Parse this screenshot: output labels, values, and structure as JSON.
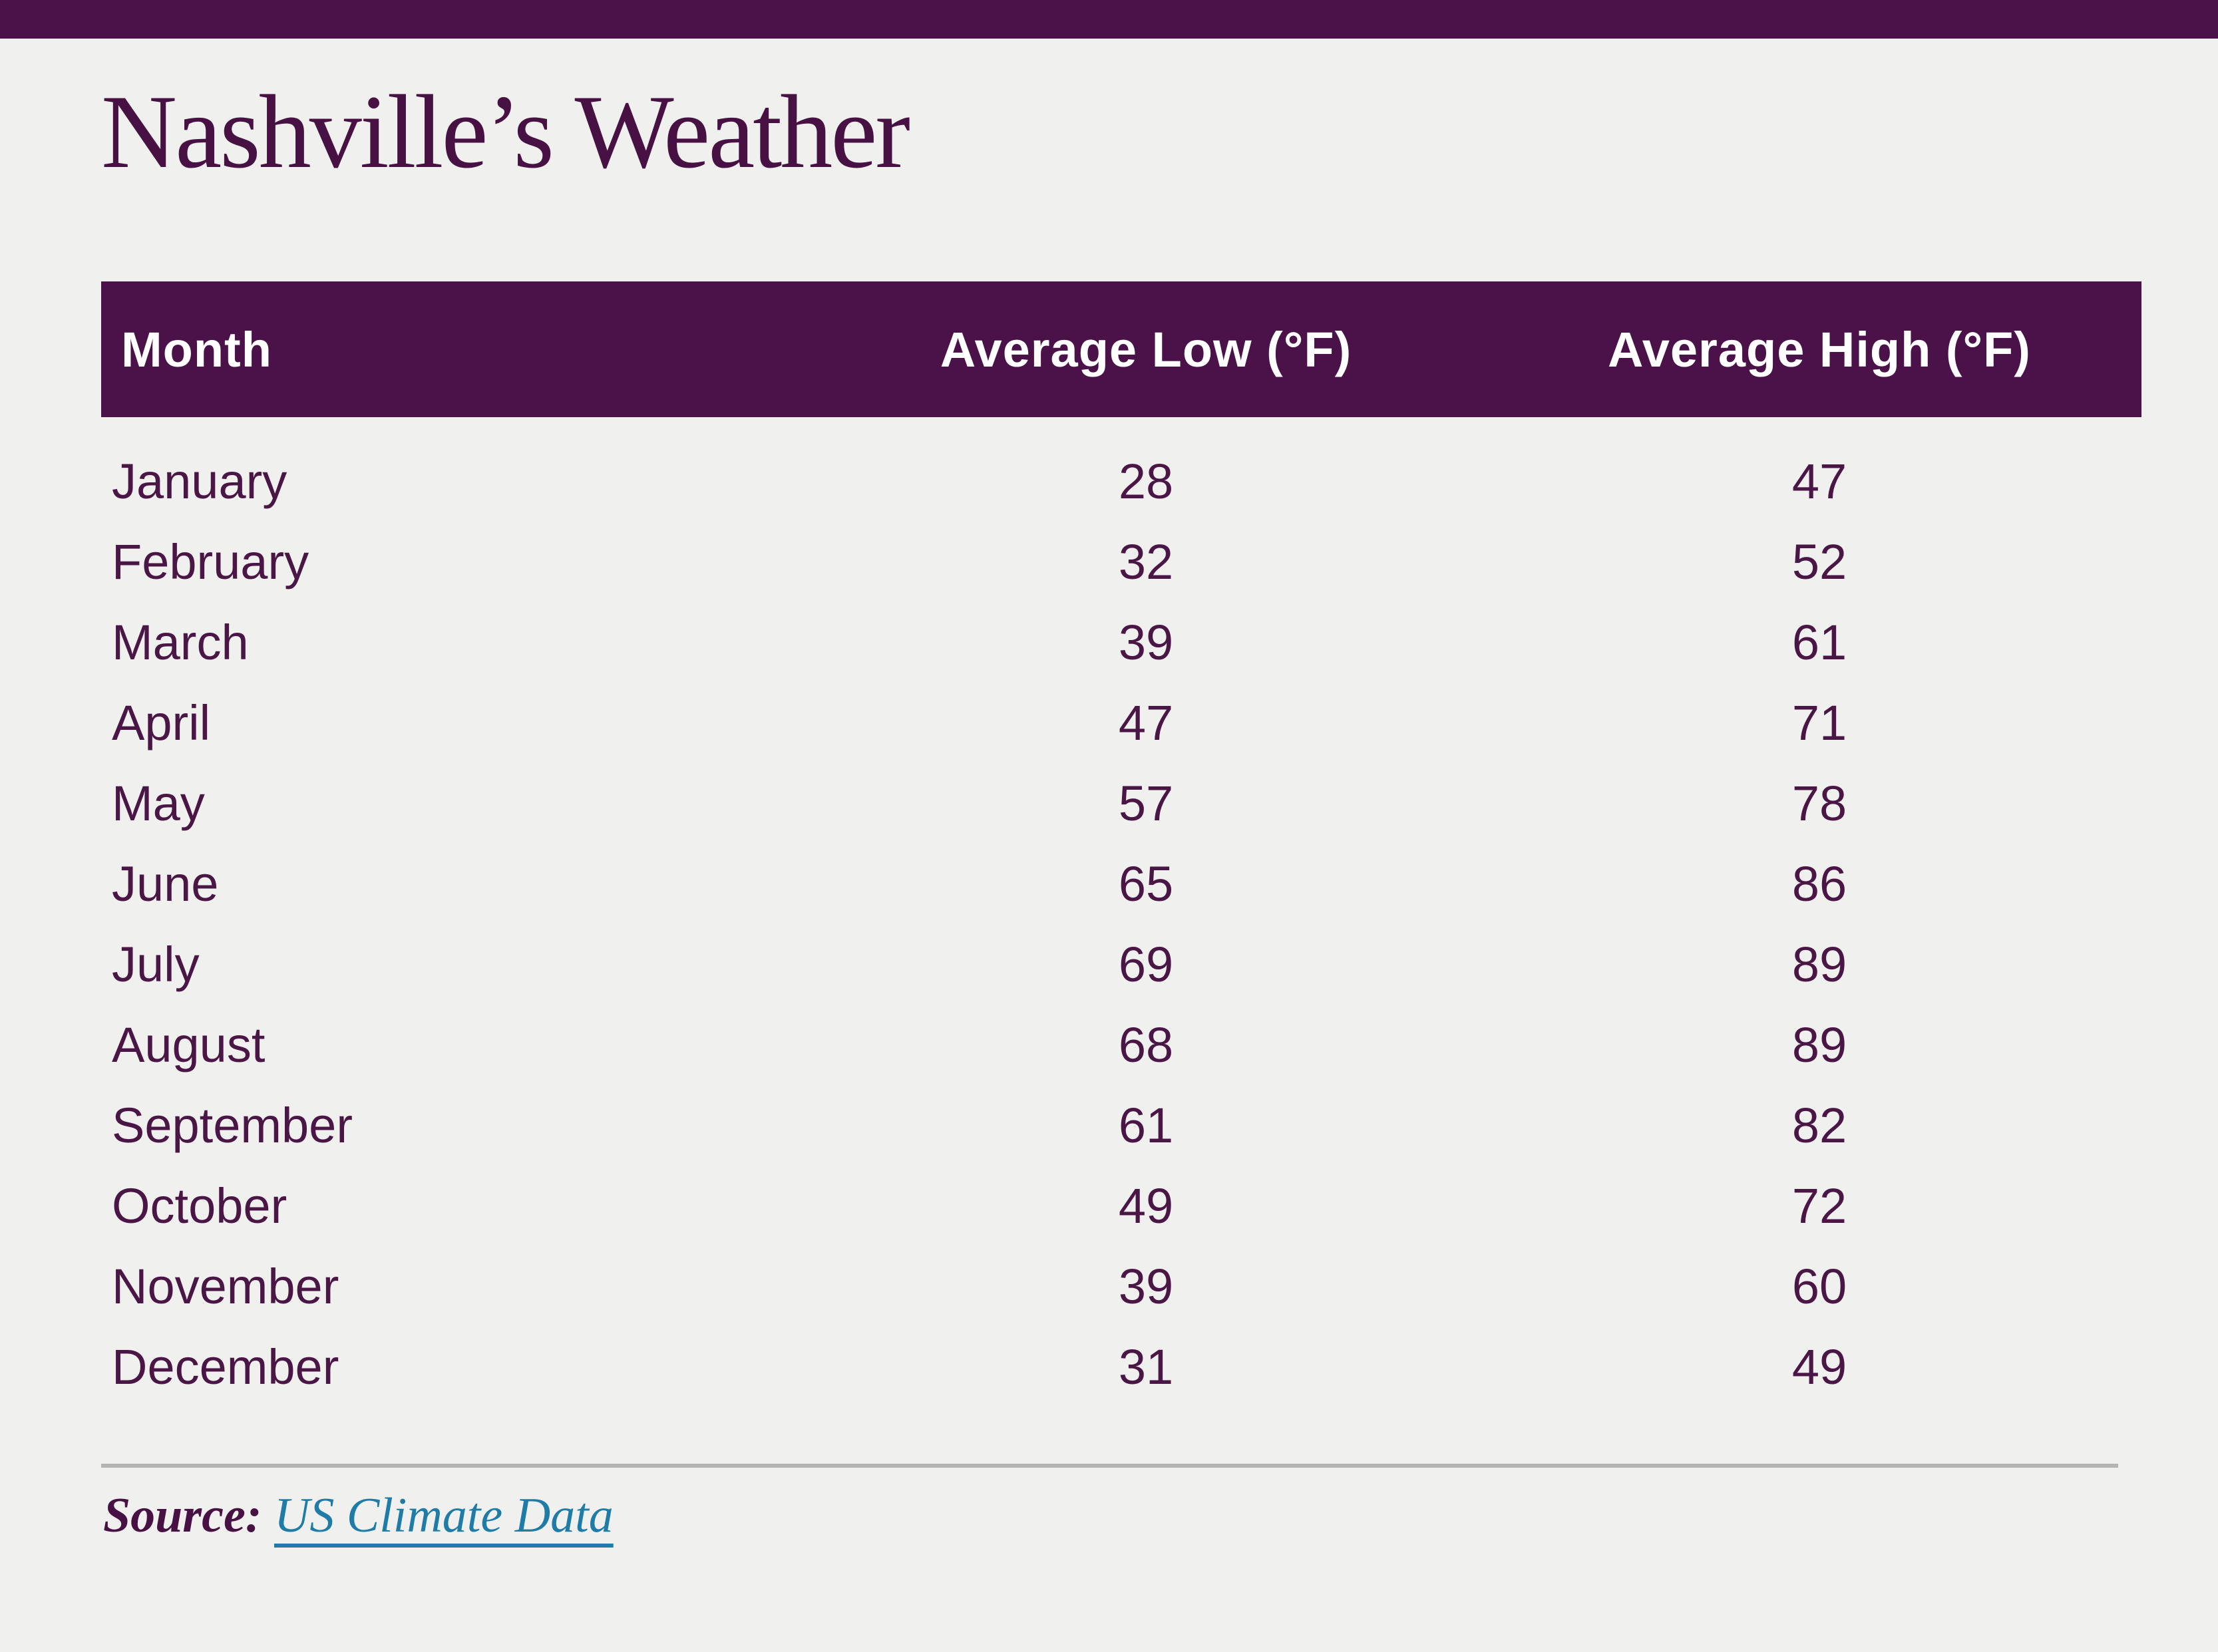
{
  "page": {
    "title": "Nashville’s Weather",
    "background_color": "#f0f0ee",
    "accent_color": "#4b1149"
  },
  "table": {
    "columns": [
      "Month",
      "Average Low (°F)",
      "Average High (°F)"
    ],
    "header_bg": "#4b1149",
    "header_text_color": "#ffffff",
    "body_text_color": "#4a1645",
    "rows": [
      {
        "month": "January",
        "low": "28",
        "high": "47"
      },
      {
        "month": "February",
        "low": "32",
        "high": "52"
      },
      {
        "month": "March",
        "low": "39",
        "high": "61"
      },
      {
        "month": "April",
        "low": "47",
        "high": "71"
      },
      {
        "month": "May",
        "low": "57",
        "high": "78"
      },
      {
        "month": "June",
        "low": "65",
        "high": "86"
      },
      {
        "month": "July",
        "low": "69",
        "high": "89"
      },
      {
        "month": "August",
        "low": "68",
        "high": "89"
      },
      {
        "month": "September",
        "low": "61",
        "high": "82"
      },
      {
        "month": "October",
        "low": "49",
        "high": "72"
      },
      {
        "month": "November",
        "low": "39",
        "high": "60"
      },
      {
        "month": "December",
        "low": "31",
        "high": "49"
      }
    ]
  },
  "source": {
    "label": "Source:",
    "link_text": "US Climate Data",
    "link_color": "#1f7ca6"
  },
  "chart_data": {
    "type": "table",
    "title": "Nashville’s Weather",
    "categories": [
      "January",
      "February",
      "March",
      "April",
      "May",
      "June",
      "July",
      "August",
      "September",
      "October",
      "November",
      "December"
    ],
    "series": [
      {
        "name": "Average Low (°F)",
        "values": [
          28,
          32,
          39,
          47,
          57,
          65,
          69,
          68,
          61,
          49,
          39,
          31
        ]
      },
      {
        "name": "Average High (°F)",
        "values": [
          47,
          52,
          61,
          71,
          78,
          86,
          89,
          89,
          82,
          72,
          60,
          49
        ]
      }
    ],
    "source": "US Climate Data"
  }
}
